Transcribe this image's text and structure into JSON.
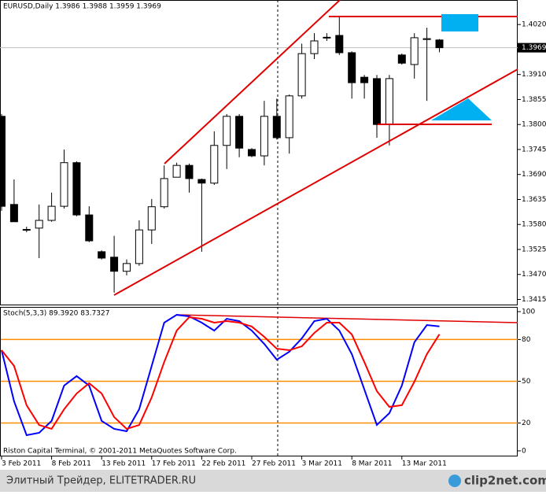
{
  "chart_data": [
    {
      "type": "candlestick",
      "title": "EURUSD,Daily  1.3986 1.3988 1.3959 1.3969",
      "categories": [
        "3 Feb 2011",
        null,
        null,
        null,
        "8 Feb 2011",
        null,
        null,
        null,
        "13 Feb 2011",
        null,
        null,
        null,
        "17 Feb 2011",
        null,
        null,
        null,
        "22 Feb 2011",
        null,
        null,
        null,
        "27 Feb 2011",
        null,
        null,
        null,
        "3 Mar 2011",
        null,
        null,
        null,
        "8 Mar 2011",
        null,
        null,
        null,
        "13 Mar 2011",
        null,
        null,
        null
      ],
      "open": [
        1.3818,
        1.3624,
        1.3569,
        1.3572,
        1.3589,
        1.362,
        1.3716,
        1.3601,
        1.352,
        1.3508,
        1.3477,
        1.3494,
        1.3568,
        1.3619,
        1.3684,
        1.371,
        1.3679,
        1.3671,
        1.3754,
        1.3818,
        1.3745,
        1.3731,
        1.3818,
        1.3771,
        1.3863,
        1.3956,
        1.3992,
        1.3996,
        1.3958,
        1.3904,
        1.3901,
        1.38,
        1.3953,
        1.3932,
        1.3987,
        1.3986
      ],
      "high": [
        1.3823,
        1.3679,
        1.3575,
        1.3624,
        1.365,
        1.3745,
        1.3719,
        1.362,
        1.3523,
        1.3555,
        1.3503,
        1.3589,
        1.3636,
        1.371,
        1.3716,
        1.3714,
        1.3681,
        1.3785,
        1.3823,
        1.3823,
        1.3748,
        1.3852,
        1.3857,
        1.3866,
        1.3978,
        1.4001,
        1.4001,
        1.4039,
        1.3961,
        1.3909,
        1.3909,
        1.3909,
        1.3956,
        1.4001,
        1.4013,
        1.3988
      ],
      "low": [
        1.361,
        1.3586,
        1.3563,
        1.3506,
        1.3586,
        1.3615,
        1.3598,
        1.3541,
        1.3503,
        1.343,
        1.3468,
        1.3489,
        1.3537,
        1.3615,
        1.3684,
        1.365,
        1.352,
        1.3667,
        1.3702,
        1.3728,
        1.3728,
        1.371,
        1.3767,
        1.3736,
        1.3857,
        1.3944,
        1.3984,
        1.3953,
        1.3857,
        1.3857,
        1.3771,
        1.3754,
        1.3932,
        1.3901,
        1.3852,
        1.3959
      ],
      "close": [
        1.362,
        1.3586,
        1.3568,
        1.3589,
        1.362,
        1.3716,
        1.3601,
        1.3544,
        1.3506,
        1.3477,
        1.3494,
        1.3568,
        1.3619,
        1.3681,
        1.371,
        1.3681,
        1.3671,
        1.3754,
        1.3818,
        1.3748,
        1.3731,
        1.3818,
        1.3771,
        1.3863,
        1.3956,
        1.3984,
        1.3991,
        1.3958,
        1.3892,
        1.3892,
        1.38,
        1.3901,
        1.3935,
        1.3991,
        1.3989,
        1.3969
      ],
      "ylim": [
        1.3402,
        1.4074
      ],
      "yticks": [
        {
          "value": 1.402,
          "label": "1.4020"
        },
        {
          "value": 1.391,
          "label": "1.3910"
        },
        1.3855,
        {
          "value": 1.38,
          "label": "1.3800"
        },
        1.3745,
        {
          "value": 1.369,
          "label": "1.3690"
        },
        1.3635,
        {
          "value": 1.358,
          "label": "1.3580"
        },
        1.3525,
        {
          "value": 1.347,
          "label": "1.3470"
        },
        1.3415
      ],
      "current_price": 1.3969
    },
    {
      "type": "line",
      "title": "Stoch(5,3,3) 89.3920 83.7327",
      "series": [
        {
          "color": "#0000ff",
          "values": [
            72.3,
            35.6,
            11.3,
            13.0,
            21.5,
            46.9,
            53.7,
            46.9,
            21.5,
            15.8,
            14.1,
            29.9,
            61.0,
            92.1,
            97.7,
            96.6,
            92.1,
            86.4,
            94.9,
            93.2,
            86.4,
            76.8,
            65.5,
            71.2,
            80.8,
            93.2,
            94.9,
            86.4,
            69.5,
            44.1,
            18.6,
            27.1,
            46.9,
            78.0,
            90.4,
            89.392
          ]
        },
        {
          "color": "#ff0000",
          "values": [
            72.3,
            61.0,
            32.8,
            18.6,
            15.8,
            29.9,
            41.2,
            48.6,
            41.2,
            24.3,
            15.8,
            18.6,
            38.4,
            63.8,
            86.4,
            96.0,
            94.9,
            92.1,
            93.2,
            92.1,
            89.3,
            81.9,
            73.4,
            72.3,
            75.1,
            84.7,
            92.1,
            92.1,
            83.6,
            63.8,
            42.9,
            31.6,
            32.8,
            49.7,
            69.5,
            83.7327
          ]
        }
      ],
      "levels": [
        80,
        50,
        20
      ],
      "level_color": "#ff8c00",
      "ylim": [
        -4,
        103.4
      ],
      "yticks": [
        100,
        80,
        50,
        20,
        0
      ],
      "annotation": "Riston Capital Terminal, © 2001-2011 MetaQuotes Software Corp."
    }
  ],
  "footer": {
    "watermark": "Элитный Трейдер, ELITETRADER.RU",
    "logo": "clip2net.com"
  }
}
